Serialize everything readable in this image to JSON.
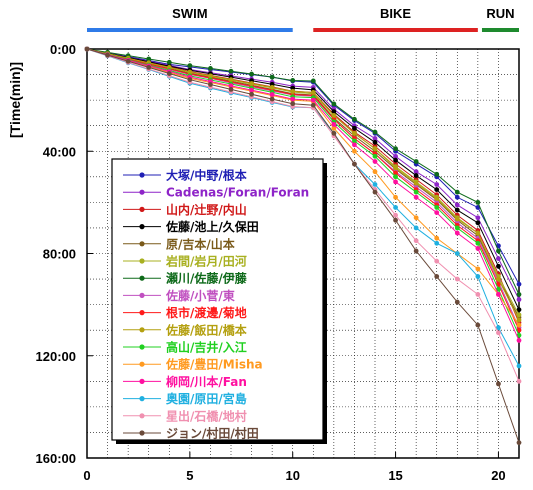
{
  "chart_data": {
    "type": "line",
    "title": "",
    "ylabel": "[Time(min)]",
    "xlabel": "",
    "xlim": [
      0,
      21
    ],
    "ylim": [
      0,
      160
    ],
    "y_reversed": true,
    "x_ticks": [
      0,
      5,
      10,
      15,
      20
    ],
    "x_tick_labels": [
      "0",
      "5",
      "10",
      "15",
      "20"
    ],
    "y_ticks": [
      0,
      40,
      80,
      120,
      160
    ],
    "y_tick_labels": [
      "0:00",
      "40:00",
      "80:00",
      "120:00",
      "160:00"
    ],
    "grid": true,
    "legend_position": "lower-left",
    "stages": [
      {
        "label": "SWIM",
        "start": 0,
        "end": 10,
        "color": "#2f7be8"
      },
      {
        "label": "BIKE",
        "start": 11,
        "end": 19,
        "color": "#dd2222"
      },
      {
        "label": "RUN",
        "start": 19.2,
        "end": 21,
        "color": "#1e8a2e"
      }
    ],
    "x": [
      0,
      1,
      2,
      3,
      4,
      5,
      6,
      7,
      8,
      9,
      10,
      11,
      12,
      13,
      14,
      15,
      16,
      17,
      18,
      19,
      20,
      21
    ],
    "series": [
      {
        "name": "大塚/中野/根本",
        "color": "#1f1fb4",
        "values": [
          0,
          1.5,
          3,
          4.5,
          6,
          7,
          8,
          9,
          10,
          11,
          12.5,
          13,
          22,
          28,
          33,
          40,
          45,
          50,
          58,
          62,
          77,
          92
        ]
      },
      {
        "name": "Cadenas/Foran/Foran",
        "color": "#8e24c8",
        "values": [
          0,
          1.6,
          3.2,
          4.8,
          6.4,
          8,
          9.3,
          10.5,
          11.8,
          13,
          14.5,
          15,
          23.5,
          30,
          35,
          42,
          48,
          53,
          61,
          66,
          82,
          98
        ]
      },
      {
        "name": "山内/辻野/内山",
        "color": "#d01818",
        "values": [
          0,
          1.8,
          3.5,
          5.2,
          7,
          8.8,
          10.3,
          11.8,
          13.3,
          14.8,
          16.5,
          17,
          25.5,
          32.5,
          38,
          45,
          51,
          57,
          65,
          71,
          88,
          107
        ]
      },
      {
        "name": "佐藤/池上/久保田",
        "color": "#000000",
        "values": [
          0,
          1.7,
          3.3,
          5,
          6.7,
          8.3,
          9.7,
          11,
          12.4,
          13.8,
          15.3,
          16,
          24.5,
          31,
          36.5,
          43.5,
          49.5,
          55,
          63,
          68,
          85,
          102
        ]
      },
      {
        "name": "原/吉本/山本",
        "color": "#7a5a1a",
        "values": [
          0,
          1.9,
          3.8,
          5.7,
          7.6,
          9.5,
          11,
          12.6,
          14.2,
          15.8,
          17.5,
          18,
          27,
          34,
          40,
          47,
          53,
          59,
          67,
          73,
          90,
          105
        ]
      },
      {
        "name": "岩間/岩月/田河",
        "color": "#a8b020",
        "values": [
          0,
          1.9,
          3.7,
          5.5,
          7.3,
          9.1,
          10.7,
          12.2,
          13.7,
          15.2,
          16.8,
          17.5,
          26,
          33,
          39,
          46,
          52,
          58,
          66,
          72,
          89,
          104
        ]
      },
      {
        "name": "瀬川/佐藤/伊藤",
        "color": "#0e6a1a",
        "values": [
          0,
          1.3,
          2.6,
          3.9,
          5.2,
          6.5,
          7.6,
          8.7,
          9.8,
          11,
          12.3,
          12.5,
          21.5,
          27.5,
          32.5,
          39,
          44,
          49,
          56,
          60,
          79,
          96
        ]
      },
      {
        "name": "佐藤/小菅/東",
        "color": "#c050c0",
        "values": [
          0,
          2,
          4,
          6,
          8,
          10,
          11.5,
          13.2,
          14.8,
          16.4,
          18,
          18.5,
          27.5,
          35,
          41,
          48,
          54,
          60,
          68,
          74,
          91,
          109
        ]
      },
      {
        "name": "根市/渡邊/菊地",
        "color": "#ff1a1a",
        "values": [
          0,
          2,
          3.9,
          5.9,
          7.8,
          9.8,
          11.3,
          12.9,
          14.5,
          16.1,
          17.8,
          18.2,
          27.5,
          35,
          41,
          48.5,
          55,
          61,
          69,
          75,
          92,
          110
        ]
      },
      {
        "name": "佐藤/飯田/橋本",
        "color": "#b4a010",
        "values": [
          0,
          1.8,
          3.6,
          5.4,
          7.2,
          9,
          10.5,
          12,
          13.5,
          15,
          16.6,
          17,
          26,
          33,
          39,
          46.5,
          52.5,
          58.5,
          66.5,
          72,
          90,
          106
        ]
      },
      {
        "name": "高山/吉井/入江",
        "color": "#20d020",
        "values": [
          0,
          2.1,
          4.2,
          6.3,
          8.4,
          10.5,
          12.1,
          13.7,
          15.3,
          16.9,
          18.7,
          19,
          28.5,
          36,
          42,
          50,
          56,
          62,
          70,
          76,
          94,
          112
        ]
      },
      {
        "name": "佐藤/豊田/Misha",
        "color": "#ff9a20",
        "values": [
          0,
          2.3,
          4.6,
          6.9,
          9.2,
          11.5,
          13.1,
          14.8,
          16.5,
          18.2,
          20,
          20.5,
          31,
          40,
          48,
          58,
          66,
          74,
          80,
          86,
          96,
          108
        ]
      },
      {
        "name": "柳岡/川本/Fan",
        "color": "#ff10a0",
        "values": [
          0,
          2.2,
          4.4,
          6.6,
          8.8,
          11,
          12.7,
          14.4,
          16.1,
          17.8,
          19.6,
          20,
          29.5,
          37.5,
          44,
          52,
          58,
          64,
          72,
          78,
          96,
          114
        ]
      },
      {
        "name": "奥園/原田/宮島",
        "color": "#20b0e0",
        "values": [
          0,
          2.7,
          5.4,
          8,
          10.7,
          13.4,
          15.3,
          17.2,
          19,
          20.9,
          22.7,
          23,
          33,
          45,
          53,
          62,
          70,
          76,
          80,
          89,
          109,
          124
        ]
      },
      {
        "name": "星出/石橋/地村",
        "color": "#f090b0",
        "values": [
          0,
          2.6,
          5.2,
          7.8,
          10.4,
          13,
          14.9,
          16.8,
          18.7,
          20.6,
          22.5,
          23,
          34,
          45,
          55,
          65,
          75,
          83,
          90,
          96,
          111,
          130
        ]
      },
      {
        "name": "ジョン/村田/村田",
        "color": "#6a4a3a",
        "values": [
          0,
          2.4,
          4.8,
          7.2,
          9.6,
          12,
          13.9,
          15.8,
          17.7,
          19.6,
          21.4,
          22,
          33,
          45,
          56,
          67,
          79,
          89,
          99,
          108,
          131,
          154
        ]
      }
    ]
  }
}
